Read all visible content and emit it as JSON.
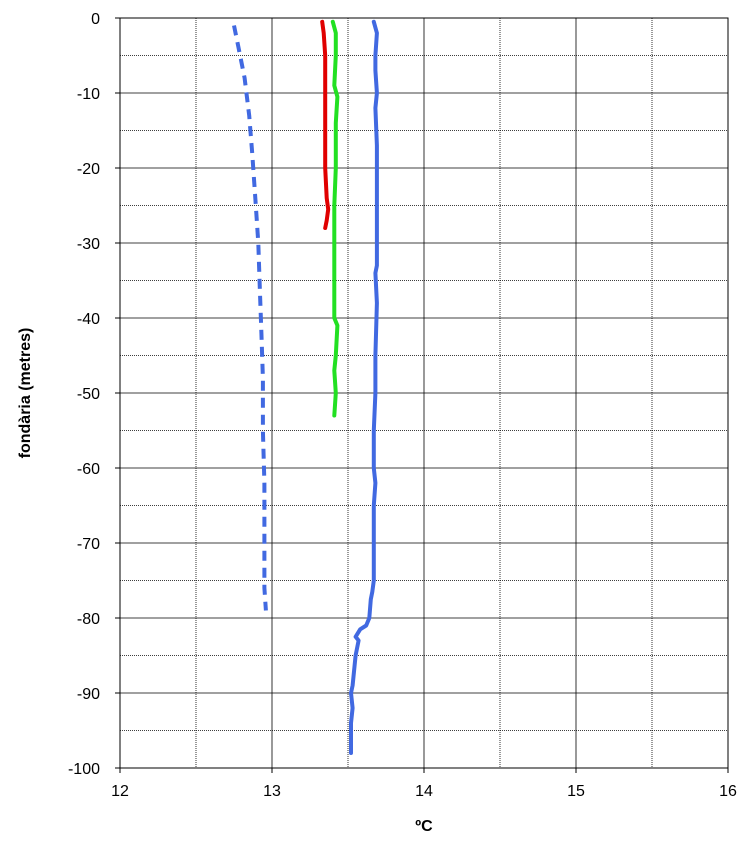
{
  "chart_data": {
    "type": "line",
    "title": "",
    "xlabel": "ºC",
    "ylabel": "fondària (metres)",
    "xlim": [
      12,
      16
    ],
    "ylim": [
      -100,
      0
    ],
    "x_ticks": [
      12,
      13,
      14,
      15,
      16
    ],
    "y_ticks": [
      0,
      -10,
      -20,
      -30,
      -40,
      -50,
      -60,
      -70,
      -80,
      -90,
      -100
    ],
    "x_minor_gridlines": [
      12.5,
      13.5,
      14.5,
      15.5
    ],
    "y_minor_gridlines": [
      -5,
      -15,
      -25,
      -35,
      -45,
      -55,
      -65,
      -75,
      -85,
      -95
    ],
    "grid": true,
    "legend": "none",
    "series": [
      {
        "color": "#4169e1",
        "style": "dashed",
        "points": [
          [
            12.75,
            -1
          ],
          [
            12.78,
            -4
          ],
          [
            12.82,
            -8
          ],
          [
            12.85,
            -13
          ],
          [
            12.87,
            -18
          ],
          [
            12.89,
            -24
          ],
          [
            12.91,
            -30
          ],
          [
            12.92,
            -36
          ],
          [
            12.93,
            -42
          ],
          [
            12.94,
            -48
          ],
          [
            12.94,
            -55
          ],
          [
            12.95,
            -62
          ],
          [
            12.95,
            -70
          ],
          [
            12.95,
            -76
          ],
          [
            12.96,
            -79
          ]
        ]
      },
      {
        "color": "#e00000",
        "style": "solid",
        "points": [
          [
            13.33,
            -0.5
          ],
          [
            13.34,
            -2
          ],
          [
            13.35,
            -5
          ],
          [
            13.35,
            -10
          ],
          [
            13.35,
            -15
          ],
          [
            13.35,
            -20
          ],
          [
            13.36,
            -24
          ],
          [
            13.37,
            -25.5
          ],
          [
            13.36,
            -27
          ],
          [
            13.35,
            -28
          ]
        ]
      },
      {
        "color": "#22e022",
        "style": "solid",
        "points": [
          [
            13.4,
            -0.5
          ],
          [
            13.42,
            -2
          ],
          [
            13.42,
            -5
          ],
          [
            13.41,
            -9
          ],
          [
            13.43,
            -10.5
          ],
          [
            13.42,
            -14
          ],
          [
            13.42,
            -20
          ],
          [
            13.41,
            -25
          ],
          [
            13.41,
            -30
          ],
          [
            13.41,
            -35
          ],
          [
            13.41,
            -40
          ],
          [
            13.43,
            -41
          ],
          [
            13.42,
            -45
          ],
          [
            13.41,
            -47
          ],
          [
            13.42,
            -50
          ],
          [
            13.41,
            -53
          ]
        ]
      },
      {
        "color": "#4169e1",
        "style": "solid",
        "points": [
          [
            13.67,
            -0.5
          ],
          [
            13.69,
            -2
          ],
          [
            13.68,
            -5
          ],
          [
            13.68,
            -7
          ],
          [
            13.69,
            -10
          ],
          [
            13.68,
            -12
          ],
          [
            13.69,
            -17
          ],
          [
            13.69,
            -22
          ],
          [
            13.69,
            -25
          ],
          [
            13.69,
            -30
          ],
          [
            13.69,
            -33
          ],
          [
            13.68,
            -34
          ],
          [
            13.69,
            -38
          ],
          [
            13.68,
            -45
          ],
          [
            13.68,
            -50
          ],
          [
            13.67,
            -55
          ],
          [
            13.67,
            -60
          ],
          [
            13.68,
            -62
          ],
          [
            13.67,
            -65
          ],
          [
            13.67,
            -70
          ],
          [
            13.67,
            -75
          ],
          [
            13.66,
            -76.5
          ],
          [
            13.65,
            -77.5
          ],
          [
            13.64,
            -80
          ],
          [
            13.62,
            -81
          ],
          [
            13.58,
            -81.5
          ],
          [
            13.55,
            -82.5
          ],
          [
            13.57,
            -83
          ],
          [
            13.55,
            -85
          ],
          [
            13.54,
            -87
          ],
          [
            13.53,
            -89
          ],
          [
            13.52,
            -90
          ],
          [
            13.53,
            -92
          ],
          [
            13.52,
            -94
          ],
          [
            13.52,
            -98
          ]
        ]
      }
    ]
  }
}
